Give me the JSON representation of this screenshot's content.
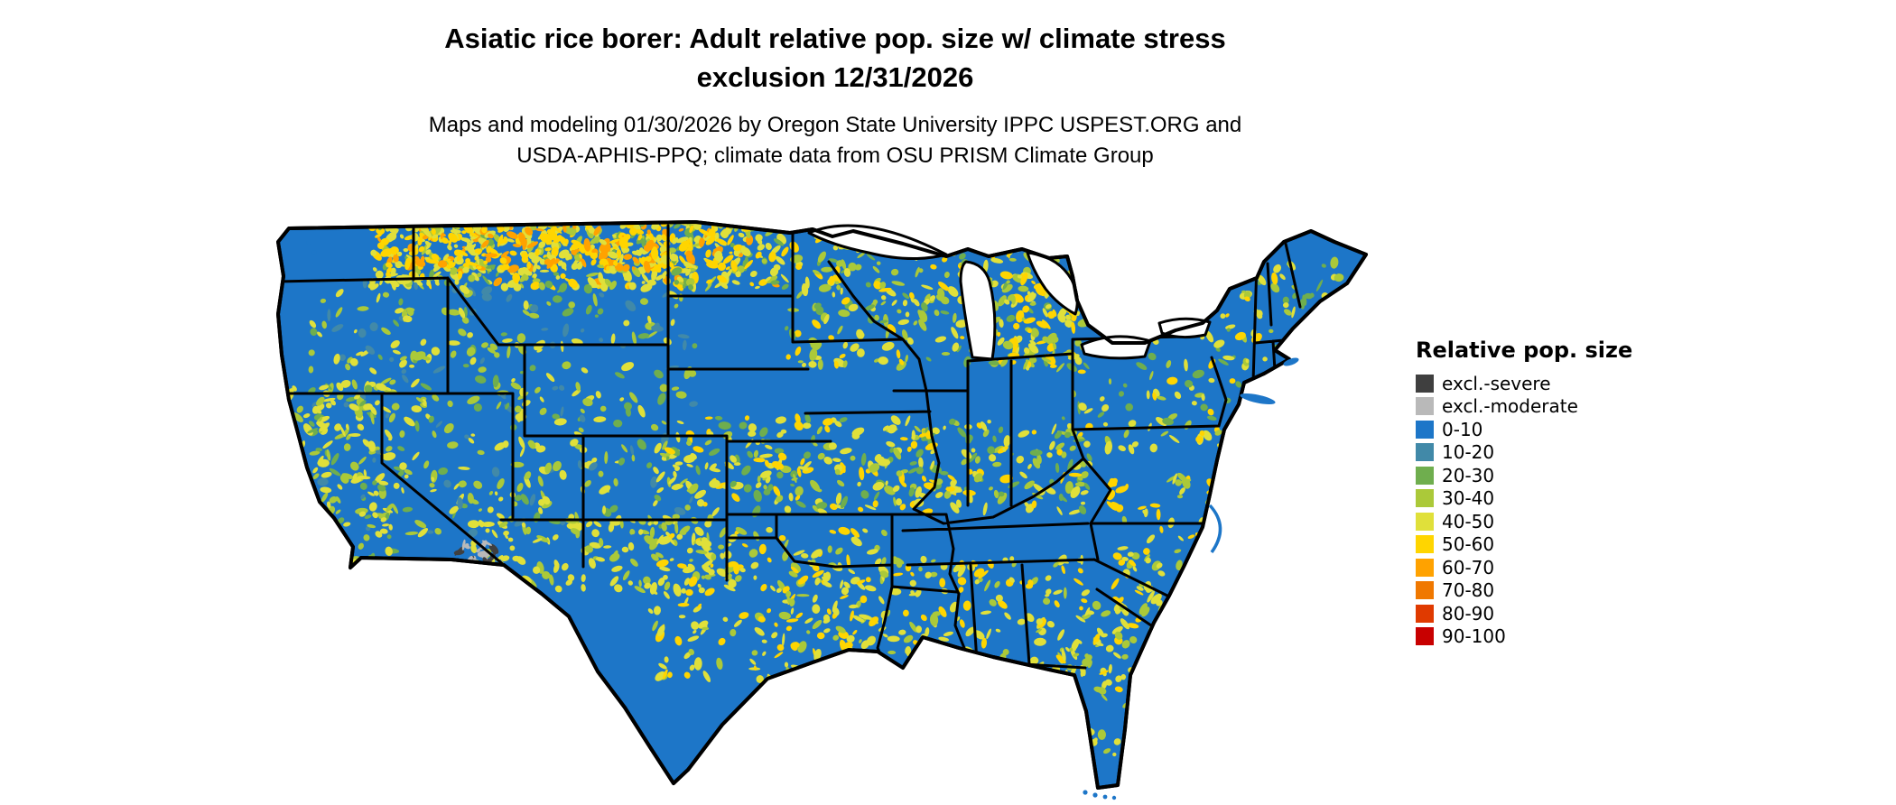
{
  "title": "Asiatic rice borer: Adult relative pop. size w/ climate stress\nexclusion 12/31/2026",
  "subtitle": "Maps and modeling 01/30/2026 by Oregon State University IPPC USPEST.ORG and\nUSDA-APHIS-PPQ; climate data from OSU PRISM Climate Group",
  "map": {
    "region": "Continental United States",
    "base_color": "#1d76c8",
    "border_color": "#000000",
    "water_color": "#ffffff",
    "background_color": "#ffffff"
  },
  "legend": {
    "title": "Relative pop. size",
    "items": [
      {
        "label": "excl.-severe",
        "color": "#3f3f3f"
      },
      {
        "label": "excl.-moderate",
        "color": "#b9b9b9"
      },
      {
        "label": "0-10",
        "color": "#1d76c8"
      },
      {
        "label": "10-20",
        "color": "#4189a8"
      },
      {
        "label": "20-30",
        "color": "#6fae4e"
      },
      {
        "label": "30-40",
        "color": "#abc939"
      },
      {
        "label": "40-50",
        "color": "#e0e03a"
      },
      {
        "label": "50-60",
        "color": "#ffd500"
      },
      {
        "label": "60-70",
        "color": "#ffa200"
      },
      {
        "label": "70-80",
        "color": "#f07800"
      },
      {
        "label": "80-90",
        "color": "#e03a00"
      },
      {
        "label": "90-100",
        "color": "#c80000"
      }
    ]
  }
}
